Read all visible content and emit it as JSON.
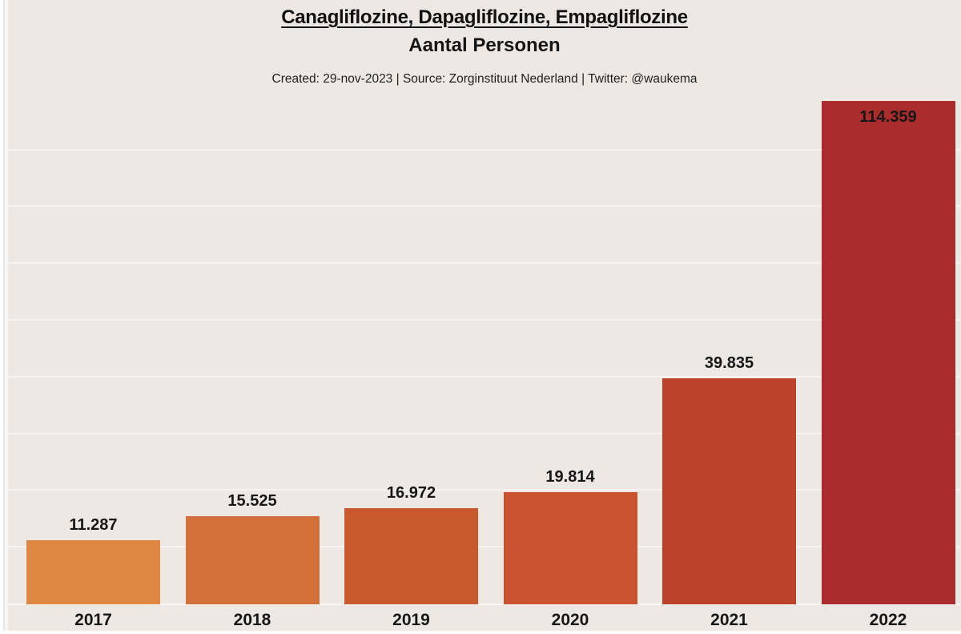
{
  "header": {
    "title": "Canagliflozine, Dapagliflozine, Empagliflozine",
    "subtitle": "Aantal Personen",
    "caption": "Created: 29-nov-2023 | Source: Zorginstituut Nederland | Twitter: @waukema"
  },
  "chart_data": {
    "type": "bar",
    "title": "Canagliflozine, Dapagliflozine, Empagliflozine",
    "subtitle": "Aantal Personen",
    "categories": [
      "2017",
      "2018",
      "2019",
      "2020",
      "2021",
      "2022"
    ],
    "values": [
      11287,
      15525,
      16972,
      19814,
      39835,
      114359
    ],
    "value_labels": [
      "11.287",
      "15.525",
      "16.972",
      "19.814",
      "39.835",
      "114.359"
    ],
    "bar_colors": [
      "#DE8845",
      "#D2703A",
      "#C95A30",
      "#C8532E",
      "#BC402A",
      "#AB2C2C"
    ],
    "xlabel": "",
    "ylabel": "",
    "ylim_visible": [
      0,
      88700
    ],
    "gridline_step": 10000,
    "grid": "horizontal-faint",
    "legend": "none",
    "clipped_bars": [
      "2022"
    ],
    "background_color": "#EDE8E3",
    "label_color": "#161616"
  }
}
